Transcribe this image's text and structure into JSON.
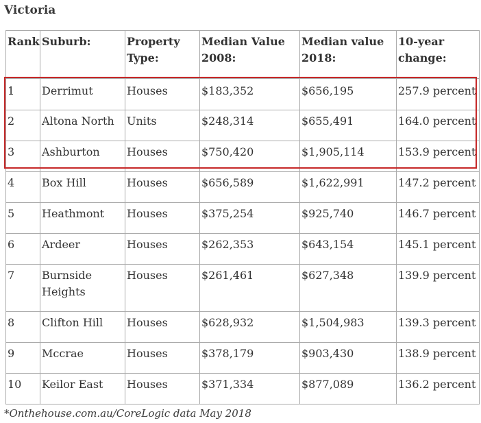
{
  "heading": "Victoria",
  "columns": {
    "rank": "Rank:",
    "suburb": "Suburb:",
    "type": "Property Type:",
    "v2008": "Median Value 2008:",
    "v2018": "Median value 2018:",
    "change": "10-year change:"
  },
  "rows": [
    {
      "rank": "1",
      "suburb": "Derrimut",
      "type": "Houses",
      "v2008": "$183,352",
      "v2018": "$656,195",
      "change": "257.9 percent"
    },
    {
      "rank": "2",
      "suburb": "Altona North",
      "type": "Units",
      "v2008": "$248,314",
      "v2018": "$655,491",
      "change": "164.0 percent"
    },
    {
      "rank": "3",
      "suburb": "Ashburton",
      "type": "Houses",
      "v2008": "$750,420",
      "v2018": "$1,905,114",
      "change": "153.9 percent"
    },
    {
      "rank": "4",
      "suburb": "Box Hill",
      "type": "Houses",
      "v2008": "$656,589",
      "v2018": "$1,622,991",
      "change": "147.2 percent"
    },
    {
      "rank": "5",
      "suburb": "Heathmont",
      "type": "Houses",
      "v2008": "$375,254",
      "v2018": "$925,740",
      "change": "146.7 percent"
    },
    {
      "rank": "6",
      "suburb": "Ardeer",
      "type": "Houses",
      "v2008": "$262,353",
      "v2018": "$643,154",
      "change": "145.1 percent"
    },
    {
      "rank": "7",
      "suburb": "Burnside Heights",
      "type": "Houses",
      "v2008": "$261,461",
      "v2018": "$627,348",
      "change": "139.9 percent"
    },
    {
      "rank": "8",
      "suburb": "Clifton Hill",
      "type": "Houses",
      "v2008": "$628,932",
      "v2018": "$1,504,983",
      "change": "139.3 percent"
    },
    {
      "rank": "9",
      "suburb": "Mccrae",
      "type": "Houses",
      "v2008": "$378,179",
      "v2018": "$903,430",
      "change": "138.9 percent"
    },
    {
      "rank": "10",
      "suburb": "Keilor East",
      "type": "Houses",
      "v2008": "$371,334",
      "v2018": "$877,089",
      "change": "136.2 percent"
    }
  ],
  "footnote": "*Onthehouse.com.au/CoreLogic data May 2018",
  "colors": {
    "highlight": "#c62828",
    "border": "#aaaaaa",
    "text": "#333333"
  }
}
